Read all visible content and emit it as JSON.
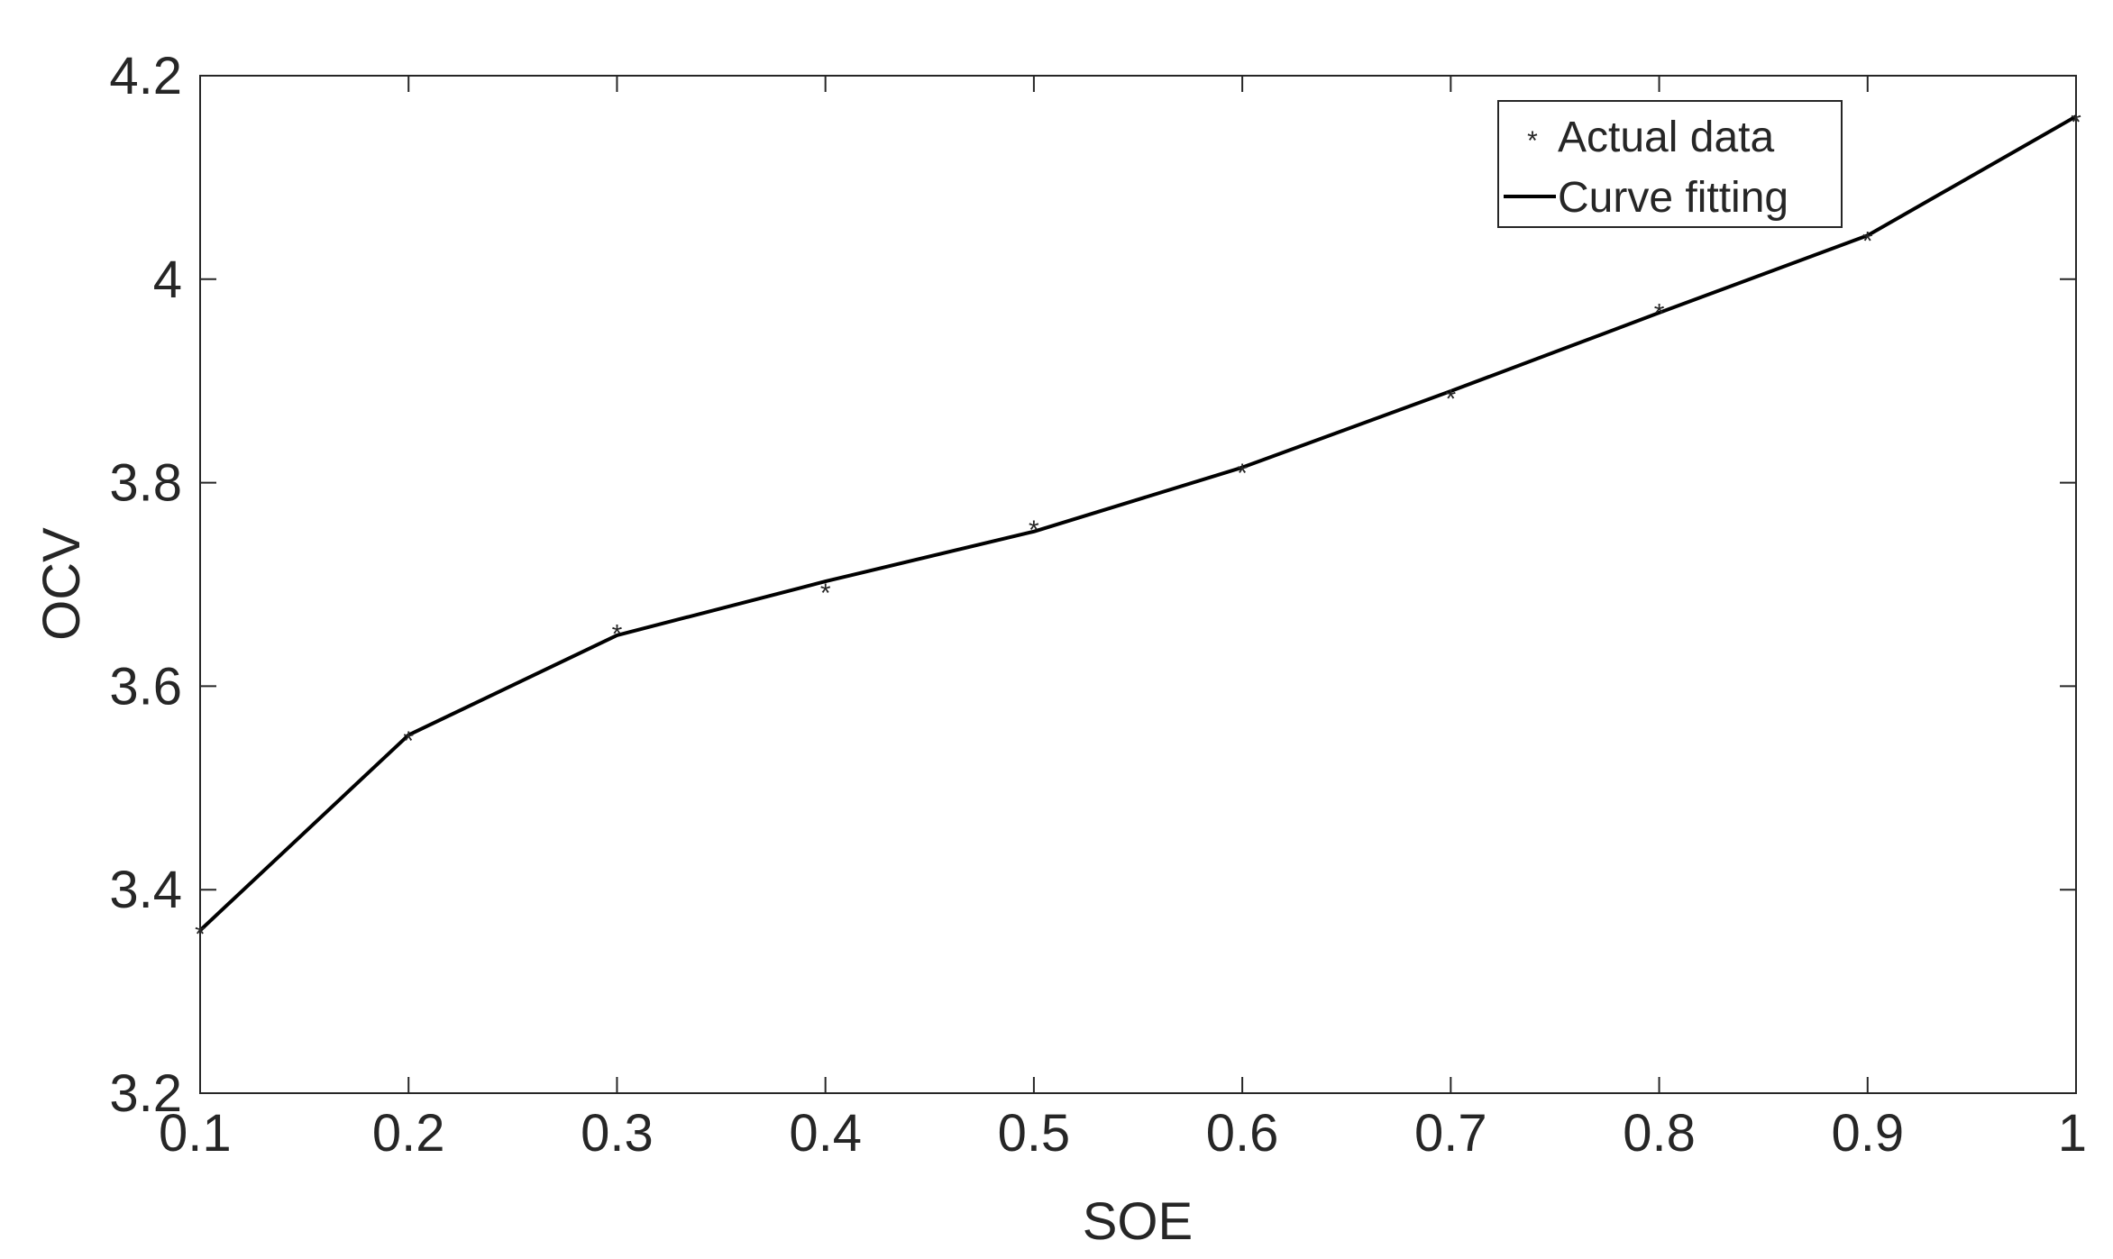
{
  "chart_data": {
    "type": "line",
    "xlabel": "SOE",
    "ylabel": "OCV",
    "xlim": [
      0.1,
      1
    ],
    "ylim": [
      3.2,
      4.2
    ],
    "x_ticks": [
      "0.1",
      "0.2",
      "0.3",
      "0.4",
      "0.5",
      "0.6",
      "0.7",
      "0.8",
      "0.9",
      "1"
    ],
    "y_ticks": [
      "3.2",
      "3.4",
      "3.6",
      "3.8",
      "4",
      "4.2"
    ],
    "grid": false,
    "legend_position": "top-right",
    "series": [
      {
        "name": "Actual data",
        "style": "markers",
        "marker": "*",
        "color": "#ff0000",
        "x": [
          0.1,
          0.2,
          0.3,
          0.4,
          0.5,
          0.6,
          0.7,
          0.8,
          0.9,
          1.0
        ],
        "y": [
          3.36,
          3.55,
          3.655,
          3.695,
          3.757,
          3.813,
          3.886,
          3.97,
          4.041,
          4.158
        ]
      },
      {
        "name": "Curve fitting",
        "style": "line",
        "color": "#000000",
        "x": [
          0.1,
          0.2,
          0.3,
          0.4,
          0.5,
          0.6,
          0.7,
          0.8,
          0.9,
          1.0
        ],
        "y": [
          3.36,
          3.552,
          3.65,
          3.703,
          3.752,
          3.815,
          3.89,
          3.967,
          4.043,
          4.16
        ]
      }
    ]
  }
}
